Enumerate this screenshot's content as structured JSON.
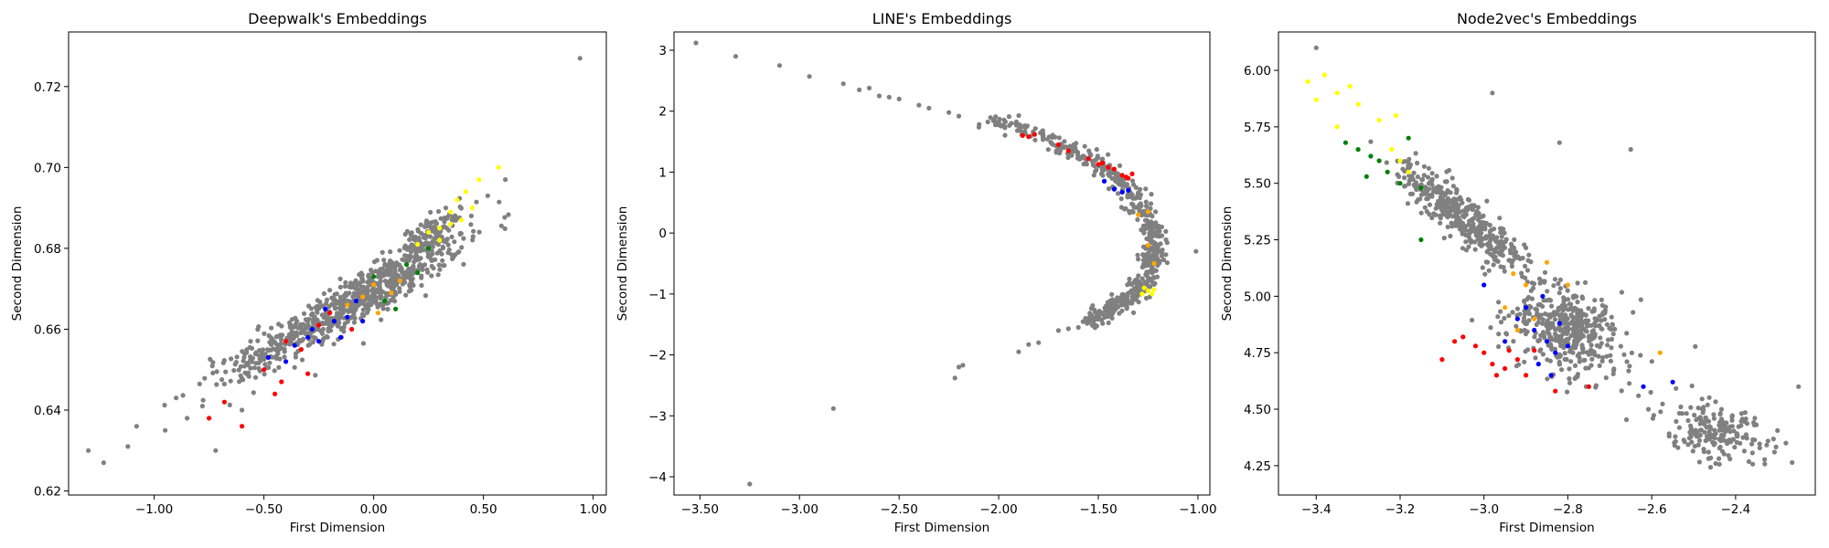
{
  "chart_data": [
    {
      "type": "scatter",
      "title": "Deepwalk's Embeddings",
      "xlabel": "First Dimension",
      "ylabel": "Second Dimension",
      "xlim": [
        -1.39,
        1.06
      ],
      "ylim": [
        0.619,
        0.7335
      ],
      "xticks": [
        -1.0,
        -0.5,
        0.0,
        0.5,
        1.0
      ],
      "yticks": [
        0.62,
        0.64,
        0.66,
        0.68,
        0.7,
        0.72
      ],
      "grid": false,
      "cloud_color": "#808080",
      "cloud": [
        {
          "center": [
            -0.05,
            0.668
          ],
          "dir": [
            0.4,
            0.0125
          ],
          "spread": 1.1,
          "width": 0.0025,
          "count": 650
        },
        {
          "center": [
            0.25,
            0.683
          ],
          "dir": [
            0.2,
            0.0075
          ],
          "spread": 0.9,
          "width": 0.002,
          "count": 120
        },
        {
          "center": [
            -0.55,
            0.652
          ],
          "dir": [
            0.25,
            0.009
          ],
          "spread": 0.9,
          "width": 0.0025,
          "count": 90
        }
      ],
      "points": [
        {
          "x": -1.3,
          "y": 0.63,
          "c": "gray"
        },
        {
          "x": -1.23,
          "y": 0.627,
          "c": "gray"
        },
        {
          "x": -1.12,
          "y": 0.631,
          "c": "gray"
        },
        {
          "x": -1.08,
          "y": 0.636,
          "c": "gray"
        },
        {
          "x": -0.95,
          "y": 0.635,
          "c": "gray"
        },
        {
          "x": -0.9,
          "y": 0.643,
          "c": "gray"
        },
        {
          "x": -0.85,
          "y": 0.638,
          "c": "gray"
        },
        {
          "x": -0.78,
          "y": 0.641,
          "c": "gray"
        },
        {
          "x": -0.72,
          "y": 0.63,
          "c": "gray"
        },
        {
          "x": -0.6,
          "y": 0.64,
          "c": "gray"
        },
        {
          "x": -0.35,
          "y": 0.662,
          "c": "gray"
        },
        {
          "x": 0.52,
          "y": 0.693,
          "c": "gray"
        },
        {
          "x": 0.6,
          "y": 0.697,
          "c": "gray"
        },
        {
          "x": 0.94,
          "y": 0.727,
          "c": "gray"
        },
        {
          "x": -0.75,
          "y": 0.638,
          "c": "red"
        },
        {
          "x": -0.68,
          "y": 0.642,
          "c": "red"
        },
        {
          "x": -0.6,
          "y": 0.636,
          "c": "red"
        },
        {
          "x": -0.5,
          "y": 0.65,
          "c": "red"
        },
        {
          "x": -0.42,
          "y": 0.647,
          "c": "red"
        },
        {
          "x": -0.4,
          "y": 0.657,
          "c": "red"
        },
        {
          "x": -0.33,
          "y": 0.655,
          "c": "red"
        },
        {
          "x": -0.3,
          "y": 0.649,
          "c": "red"
        },
        {
          "x": -0.25,
          "y": 0.661,
          "c": "red"
        },
        {
          "x": -0.2,
          "y": 0.664,
          "c": "red"
        },
        {
          "x": -0.45,
          "y": 0.644,
          "c": "red"
        },
        {
          "x": -0.1,
          "y": 0.66,
          "c": "red"
        },
        {
          "x": -0.48,
          "y": 0.653,
          "c": "blue"
        },
        {
          "x": -0.36,
          "y": 0.656,
          "c": "blue"
        },
        {
          "x": -0.3,
          "y": 0.658,
          "c": "blue"
        },
        {
          "x": -0.25,
          "y": 0.657,
          "c": "blue"
        },
        {
          "x": -0.18,
          "y": 0.662,
          "c": "blue"
        },
        {
          "x": -0.12,
          "y": 0.663,
          "c": "blue"
        },
        {
          "x": -0.22,
          "y": 0.665,
          "c": "blue"
        },
        {
          "x": -0.15,
          "y": 0.658,
          "c": "blue"
        },
        {
          "x": -0.4,
          "y": 0.652,
          "c": "blue"
        },
        {
          "x": -0.05,
          "y": 0.662,
          "c": "blue"
        },
        {
          "x": -0.28,
          "y": 0.66,
          "c": "blue"
        },
        {
          "x": -0.08,
          "y": 0.667,
          "c": "blue"
        },
        {
          "x": 0.0,
          "y": 0.673,
          "c": "green"
        },
        {
          "x": 0.05,
          "y": 0.667,
          "c": "green"
        },
        {
          "x": 0.15,
          "y": 0.676,
          "c": "green"
        },
        {
          "x": 0.2,
          "y": 0.674,
          "c": "green"
        },
        {
          "x": 0.25,
          "y": 0.68,
          "c": "green"
        },
        {
          "x": 0.1,
          "y": 0.665,
          "c": "green"
        },
        {
          "x": -0.05,
          "y": 0.668,
          "c": "orange"
        },
        {
          "x": 0.0,
          "y": 0.671,
          "c": "orange"
        },
        {
          "x": 0.08,
          "y": 0.669,
          "c": "orange"
        },
        {
          "x": 0.12,
          "y": 0.672,
          "c": "orange"
        },
        {
          "x": -0.12,
          "y": 0.666,
          "c": "orange"
        },
        {
          "x": 0.02,
          "y": 0.664,
          "c": "orange"
        },
        {
          "x": 0.3,
          "y": 0.685,
          "c": "yellow"
        },
        {
          "x": 0.35,
          "y": 0.689,
          "c": "yellow"
        },
        {
          "x": 0.38,
          "y": 0.692,
          "c": "yellow"
        },
        {
          "x": 0.42,
          "y": 0.694,
          "c": "yellow"
        },
        {
          "x": 0.45,
          "y": 0.69,
          "c": "yellow"
        },
        {
          "x": 0.3,
          "y": 0.682,
          "c": "yellow"
        },
        {
          "x": 0.25,
          "y": 0.684,
          "c": "yellow"
        },
        {
          "x": 0.4,
          "y": 0.687,
          "c": "yellow"
        },
        {
          "x": 0.2,
          "y": 0.681,
          "c": "yellow"
        },
        {
          "x": 0.57,
          "y": 0.7,
          "c": "yellow"
        },
        {
          "x": 0.35,
          "y": 0.686,
          "c": "yellow"
        },
        {
          "x": 0.48,
          "y": 0.697,
          "c": "yellow"
        }
      ]
    },
    {
      "type": "scatter",
      "title": "LINE's Embeddings",
      "xlabel": "First Dimension",
      "ylabel": "Second Dimension",
      "xlim": [
        -3.63,
        -0.94
      ],
      "ylim": [
        -4.3,
        3.3
      ],
      "xticks": [
        -3.5,
        -3.0,
        -2.5,
        -2.0,
        -1.5,
        -1.0
      ],
      "yticks": [
        -4,
        -3,
        -2,
        -1,
        0,
        1,
        2,
        3
      ],
      "grid": false,
      "cloud_color": "#808080",
      "arc": {
        "samples": [
          [
            -2.1,
            1.9
          ],
          [
            -1.95,
            1.75
          ],
          [
            -1.8,
            1.6
          ],
          [
            -1.65,
            1.42
          ],
          [
            -1.52,
            1.2
          ],
          [
            -1.42,
            0.95
          ],
          [
            -1.33,
            0.65
          ],
          [
            -1.27,
            0.35
          ],
          [
            -1.23,
            0.05
          ],
          [
            -1.22,
            -0.25
          ],
          [
            -1.24,
            -0.55
          ],
          [
            -1.28,
            -0.85
          ],
          [
            -1.35,
            -1.1
          ],
          [
            -1.45,
            -1.3
          ],
          [
            -1.55,
            -1.45
          ]
        ],
        "width": 0.03,
        "count": 600
      },
      "points": [
        {
          "x": -3.52,
          "y": 3.12,
          "c": "gray"
        },
        {
          "x": -3.32,
          "y": 2.9,
          "c": "gray"
        },
        {
          "x": -3.1,
          "y": 2.75,
          "c": "gray"
        },
        {
          "x": -2.95,
          "y": 2.57,
          "c": "gray"
        },
        {
          "x": -2.78,
          "y": 2.45,
          "c": "gray"
        },
        {
          "x": -2.7,
          "y": 2.35,
          "c": "gray"
        },
        {
          "x": -2.65,
          "y": 2.38,
          "c": "gray"
        },
        {
          "x": -2.6,
          "y": 2.25,
          "c": "gray"
        },
        {
          "x": -2.55,
          "y": 2.23,
          "c": "gray"
        },
        {
          "x": -2.5,
          "y": 2.2,
          "c": "gray"
        },
        {
          "x": -2.4,
          "y": 2.1,
          "c": "gray"
        },
        {
          "x": -2.35,
          "y": 2.05,
          "c": "gray"
        },
        {
          "x": -2.25,
          "y": 1.98,
          "c": "gray"
        },
        {
          "x": -2.2,
          "y": 1.92,
          "c": "gray"
        },
        {
          "x": -2.2,
          "y": -2.2,
          "c": "gray"
        },
        {
          "x": -2.22,
          "y": -2.38,
          "c": "gray"
        },
        {
          "x": -2.18,
          "y": -2.17,
          "c": "gray"
        },
        {
          "x": -1.9,
          "y": -1.95,
          "c": "gray"
        },
        {
          "x": -1.85,
          "y": -1.83,
          "c": "gray"
        },
        {
          "x": -1.8,
          "y": -1.8,
          "c": "gray"
        },
        {
          "x": -1.7,
          "y": -1.6,
          "c": "gray"
        },
        {
          "x": -1.65,
          "y": -1.57,
          "c": "gray"
        },
        {
          "x": -1.6,
          "y": -1.55,
          "c": "gray"
        },
        {
          "x": -2.83,
          "y": -2.88,
          "c": "gray"
        },
        {
          "x": -3.25,
          "y": -4.12,
          "c": "gray"
        },
        {
          "x": -1.01,
          "y": -0.3,
          "c": "gray"
        },
        {
          "x": -1.88,
          "y": 1.6,
          "c": "red"
        },
        {
          "x": -1.85,
          "y": 1.58,
          "c": "red"
        },
        {
          "x": -1.82,
          "y": 1.62,
          "c": "red"
        },
        {
          "x": -1.7,
          "y": 1.45,
          "c": "red"
        },
        {
          "x": -1.55,
          "y": 1.22,
          "c": "red"
        },
        {
          "x": -1.48,
          "y": 1.15,
          "c": "red"
        },
        {
          "x": -1.45,
          "y": 1.08,
          "c": "red"
        },
        {
          "x": -1.42,
          "y": 1.05,
          "c": "red"
        },
        {
          "x": -1.38,
          "y": 0.95,
          "c": "red"
        },
        {
          "x": -1.35,
          "y": 0.9,
          "c": "red"
        },
        {
          "x": -1.33,
          "y": 0.97,
          "c": "red"
        },
        {
          "x": -1.5,
          "y": 1.13,
          "c": "red"
        },
        {
          "x": -1.65,
          "y": 1.35,
          "c": "red"
        },
        {
          "x": -1.36,
          "y": 0.92,
          "c": "red"
        },
        {
          "x": -1.47,
          "y": 0.85,
          "c": "blue"
        },
        {
          "x": -1.42,
          "y": 0.72,
          "c": "blue"
        },
        {
          "x": -1.38,
          "y": 0.67,
          "c": "blue"
        },
        {
          "x": -1.35,
          "y": 0.7,
          "c": "blue"
        },
        {
          "x": -1.3,
          "y": 0.3,
          "c": "orange"
        },
        {
          "x": -1.25,
          "y": -0.2,
          "c": "orange"
        },
        {
          "x": -1.22,
          "y": -0.5,
          "c": "orange"
        },
        {
          "x": -1.25,
          "y": 0.35,
          "c": "orange"
        },
        {
          "x": -1.27,
          "y": -0.9,
          "c": "yellow"
        },
        {
          "x": -1.25,
          "y": -0.95,
          "c": "yellow"
        },
        {
          "x": -1.23,
          "y": -1.0,
          "c": "yellow"
        },
        {
          "x": -1.28,
          "y": -1.0,
          "c": "yellow"
        },
        {
          "x": -1.22,
          "y": -0.93,
          "c": "yellow"
        }
      ]
    },
    {
      "type": "scatter",
      "title": "Node2vec's Embeddings",
      "xlabel": "First Dimension",
      "ylabel": "Second Dimension",
      "xlim": [
        -3.49,
        -2.21
      ],
      "ylim": [
        4.12,
        6.17
      ],
      "xticks": [
        -3.4,
        -3.2,
        -3.0,
        -2.8,
        -2.6,
        -2.4
      ],
      "yticks": [
        4.25,
        4.5,
        4.75,
        5.0,
        5.25,
        5.5,
        5.75,
        6.0
      ],
      "grid": false,
      "cloud_color": "#808080",
      "cloud": [
        {
          "center": [
            -3.05,
            5.35
          ],
          "dir": [
            0.12,
            -0.19
          ],
          "spread": 1.2,
          "width": 0.04,
          "count": 420
        },
        {
          "center": [
            -2.8,
            4.85
          ],
          "dir": [
            0.12,
            -0.12
          ],
          "spread": 1.1,
          "width": 0.09,
          "count": 420
        },
        {
          "center": [
            -2.45,
            4.4
          ],
          "dir": [
            0.1,
            -0.08
          ],
          "spread": 1.2,
          "width": 0.06,
          "count": 200
        }
      ],
      "points": [
        {
          "x": -3.4,
          "y": 6.1,
          "c": "gray"
        },
        {
          "x": -2.98,
          "y": 5.9,
          "c": "gray"
        },
        {
          "x": -2.65,
          "y": 5.65,
          "c": "gray"
        },
        {
          "x": -2.82,
          "y": 5.68,
          "c": "gray"
        },
        {
          "x": -2.25,
          "y": 4.6,
          "c": "gray"
        },
        {
          "x": -2.28,
          "y": 4.35,
          "c": "gray"
        },
        {
          "x": -3.42,
          "y": 5.95,
          "c": "yellow"
        },
        {
          "x": -3.38,
          "y": 5.98,
          "c": "yellow"
        },
        {
          "x": -3.35,
          "y": 5.9,
          "c": "yellow"
        },
        {
          "x": -3.32,
          "y": 5.93,
          "c": "yellow"
        },
        {
          "x": -3.4,
          "y": 5.87,
          "c": "yellow"
        },
        {
          "x": -3.3,
          "y": 5.85,
          "c": "yellow"
        },
        {
          "x": -3.35,
          "y": 5.75,
          "c": "yellow"
        },
        {
          "x": -3.25,
          "y": 5.78,
          "c": "yellow"
        },
        {
          "x": -3.22,
          "y": 5.65,
          "c": "yellow"
        },
        {
          "x": -3.2,
          "y": 5.6,
          "c": "yellow"
        },
        {
          "x": -3.18,
          "y": 5.55,
          "c": "yellow"
        },
        {
          "x": -3.21,
          "y": 5.8,
          "c": "yellow"
        },
        {
          "x": -3.33,
          "y": 5.68,
          "c": "green"
        },
        {
          "x": -3.3,
          "y": 5.65,
          "c": "green"
        },
        {
          "x": -3.27,
          "y": 5.62,
          "c": "green"
        },
        {
          "x": -3.25,
          "y": 5.6,
          "c": "green"
        },
        {
          "x": -3.23,
          "y": 5.55,
          "c": "green"
        },
        {
          "x": -3.2,
          "y": 5.5,
          "c": "green"
        },
        {
          "x": -3.18,
          "y": 5.7,
          "c": "green"
        },
        {
          "x": -3.15,
          "y": 5.48,
          "c": "green"
        },
        {
          "x": -3.15,
          "y": 5.25,
          "c": "green"
        },
        {
          "x": -3.28,
          "y": 5.53,
          "c": "green"
        },
        {
          "x": -2.93,
          "y": 5.1,
          "c": "orange"
        },
        {
          "x": -2.9,
          "y": 5.05,
          "c": "orange"
        },
        {
          "x": -2.85,
          "y": 5.15,
          "c": "orange"
        },
        {
          "x": -2.95,
          "y": 4.95,
          "c": "orange"
        },
        {
          "x": -2.88,
          "y": 4.9,
          "c": "orange"
        },
        {
          "x": -2.92,
          "y": 4.85,
          "c": "orange"
        },
        {
          "x": -2.58,
          "y": 4.75,
          "c": "orange"
        },
        {
          "x": -2.8,
          "y": 5.05,
          "c": "orange"
        },
        {
          "x": -3.05,
          "y": 4.82,
          "c": "red"
        },
        {
          "x": -3.02,
          "y": 4.78,
          "c": "red"
        },
        {
          "x": -3.0,
          "y": 4.75,
          "c": "red"
        },
        {
          "x": -2.98,
          "y": 4.7,
          "c": "red"
        },
        {
          "x": -2.95,
          "y": 4.68,
          "c": "red"
        },
        {
          "x": -2.92,
          "y": 4.72,
          "c": "red"
        },
        {
          "x": -2.9,
          "y": 4.65,
          "c": "red"
        },
        {
          "x": -2.97,
          "y": 4.65,
          "c": "red"
        },
        {
          "x": -3.1,
          "y": 4.72,
          "c": "red"
        },
        {
          "x": -3.07,
          "y": 4.8,
          "c": "red"
        },
        {
          "x": -2.83,
          "y": 4.58,
          "c": "red"
        },
        {
          "x": -2.75,
          "y": 4.6,
          "c": "red"
        },
        {
          "x": -2.88,
          "y": 4.76,
          "c": "red"
        },
        {
          "x": -2.94,
          "y": 4.76,
          "c": "red"
        },
        {
          "x": -3.0,
          "y": 5.05,
          "c": "blue"
        },
        {
          "x": -2.92,
          "y": 4.9,
          "c": "blue"
        },
        {
          "x": -2.88,
          "y": 4.85,
          "c": "blue"
        },
        {
          "x": -2.85,
          "y": 4.8,
          "c": "blue"
        },
        {
          "x": -2.83,
          "y": 4.75,
          "c": "blue"
        },
        {
          "x": -2.87,
          "y": 4.7,
          "c": "blue"
        },
        {
          "x": -2.82,
          "y": 4.88,
          "c": "blue"
        },
        {
          "x": -2.9,
          "y": 4.95,
          "c": "blue"
        },
        {
          "x": -2.84,
          "y": 4.65,
          "c": "blue"
        },
        {
          "x": -2.8,
          "y": 4.78,
          "c": "blue"
        },
        {
          "x": -2.62,
          "y": 4.6,
          "c": "blue"
        },
        {
          "x": -2.55,
          "y": 4.62,
          "c": "blue"
        },
        {
          "x": -2.95,
          "y": 4.8,
          "c": "blue"
        },
        {
          "x": -2.86,
          "y": 5.0,
          "c": "blue"
        }
      ]
    }
  ],
  "colors": {
    "gray": "#808080",
    "red": "#ff0000",
    "blue": "#0000ff",
    "green": "#008000",
    "orange": "#ffa500",
    "yellow": "#ffff00"
  }
}
